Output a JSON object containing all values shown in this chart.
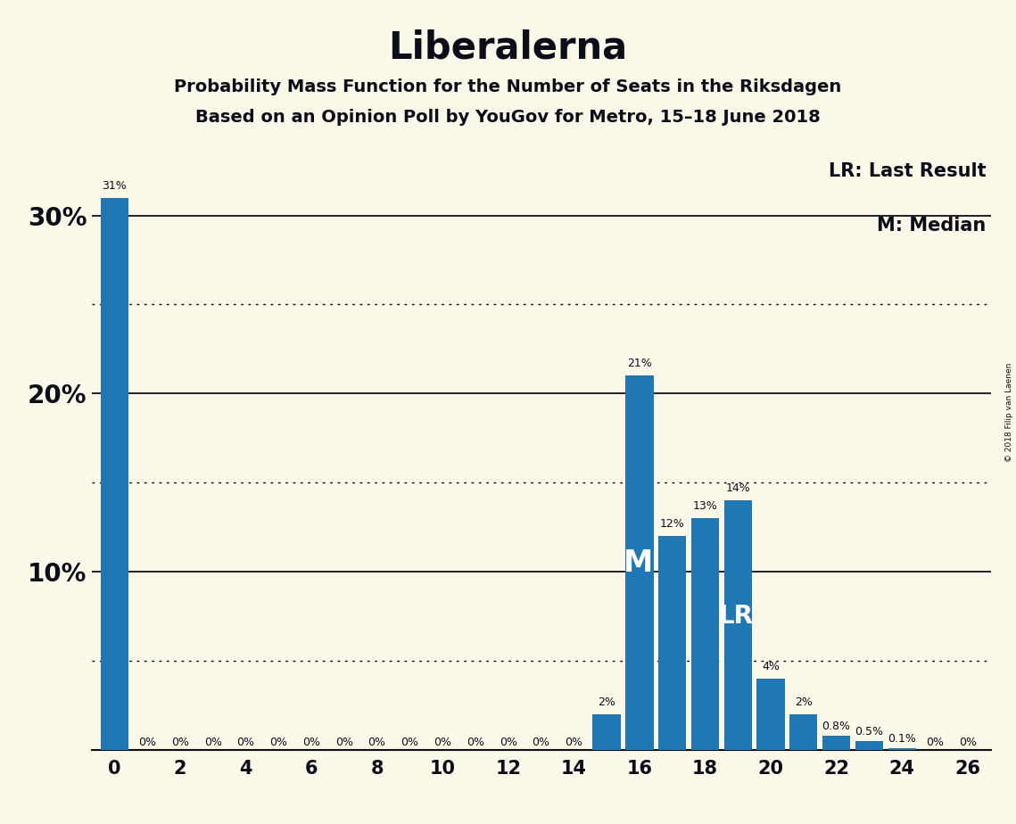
{
  "title": "Liberalerna",
  "subtitle1": "Probability Mass Function for the Number of Seats in the Riksdagen",
  "subtitle2": "Based on an Opinion Poll by YouGov for Metro, 15–18 June 2018",
  "legend_lr": "LR: Last Result",
  "legend_m": "M: Median",
  "copyright": "© 2018 Filip van Laenen",
  "seats": [
    0,
    1,
    2,
    3,
    4,
    5,
    6,
    7,
    8,
    9,
    10,
    11,
    12,
    13,
    14,
    15,
    16,
    17,
    18,
    19,
    20,
    21,
    22,
    23,
    24,
    25,
    26
  ],
  "probabilities": [
    31,
    0,
    0,
    0,
    0,
    0,
    0,
    0,
    0,
    0,
    0,
    0,
    0,
    0,
    0,
    2,
    21,
    12,
    13,
    14,
    4,
    2,
    0.8,
    0.5,
    0.1,
    0,
    0
  ],
  "labels": [
    "31%",
    "0%",
    "0%",
    "0%",
    "0%",
    "0%",
    "0%",
    "0%",
    "0%",
    "0%",
    "0%",
    "0%",
    "0%",
    "0%",
    "0%",
    "2%",
    "21%",
    "12%",
    "13%",
    "14%",
    "4%",
    "2%",
    "0.8%",
    "0.5%",
    "0.1%",
    "0%",
    "0%"
  ],
  "median_seat": 16,
  "lr_seat": 19,
  "bar_color": "#1f77b4",
  "background_color": "#faf8e8",
  "text_color": "#0d0d1a",
  "xticks": [
    0,
    2,
    4,
    6,
    8,
    10,
    12,
    14,
    16,
    18,
    20,
    22,
    24,
    26
  ],
  "ylim": [
    0,
    34
  ],
  "xlim": [
    -0.7,
    26.7
  ],
  "solid_lines": [
    10,
    20,
    30
  ],
  "dotted_lines": [
    5,
    15,
    25
  ],
  "ytick_positions": [
    10,
    20,
    30
  ],
  "ytick_labels": [
    "10%",
    "20%",
    "30%"
  ]
}
